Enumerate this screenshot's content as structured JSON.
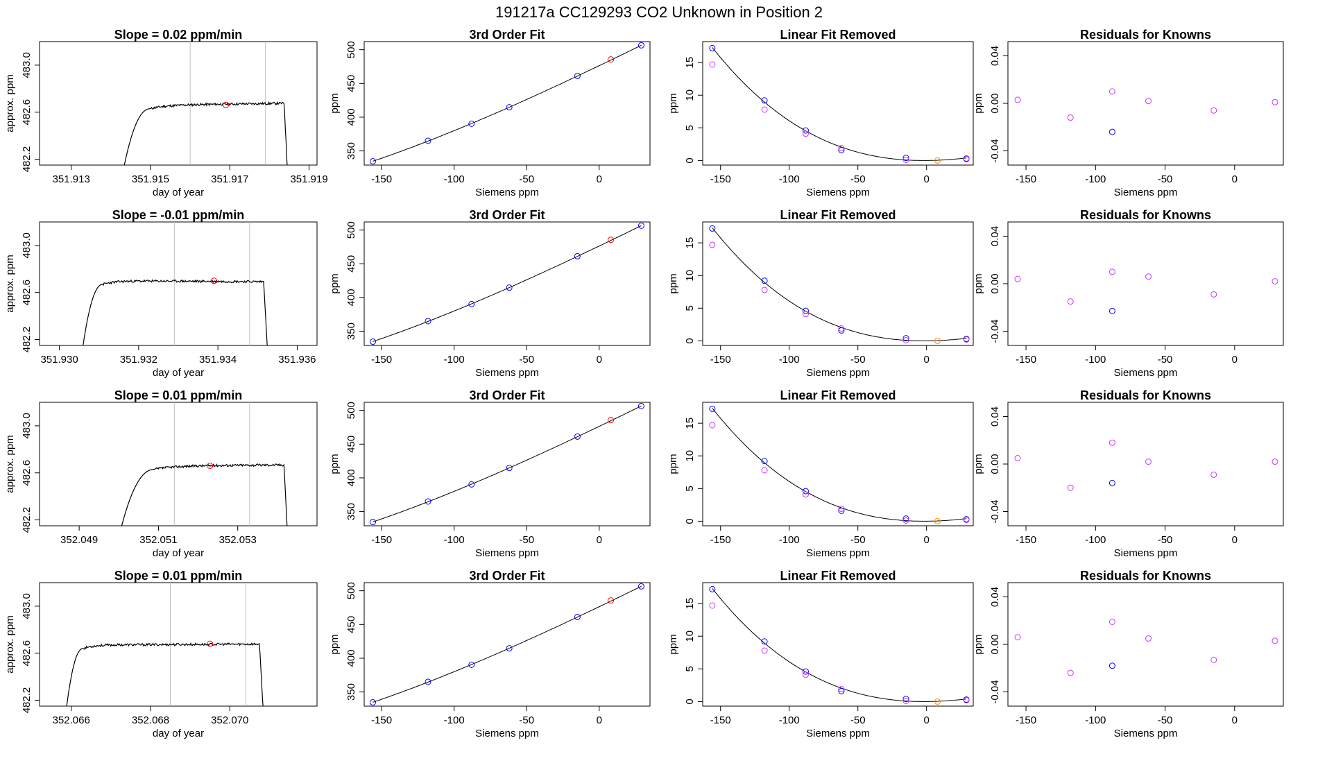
{
  "figure": {
    "title": "191217a      CC129293    CO2 Unknown in Position  2"
  },
  "colors": {
    "axis": "#000000",
    "line": "#000000",
    "vline": "#bebebe",
    "known_blue": "#0000ff",
    "unknown_red": "#ff0000",
    "unknown_orange": "#ff8c00",
    "magenta": "#cc33ff"
  },
  "chart_data": [
    {
      "type": "line",
      "panel": "row1-col1",
      "title": "Slope =  0.02  ppm/min",
      "xlabel": "day of year",
      "ylabel": "approx. ppm",
      "xlim": [
        351.9122,
        351.9192
      ],
      "ylim": [
        482.15,
        483.2
      ],
      "xticks": [
        "351.913",
        "351.915",
        "351.917",
        "351.919"
      ],
      "yticks": [
        "482.2",
        "482.6",
        "483.0"
      ],
      "vlines": [
        351.916,
        351.9179
      ],
      "marker": {
        "x": 351.9169,
        "y": 482.66,
        "color": "red"
      },
      "trace": {
        "start": 351.9142,
        "end": 351.9185,
        "plateau": 482.66,
        "rise_end": 351.915,
        "slope": 0.02,
        "noise": 0.02,
        "seed": 11
      }
    },
    {
      "type": "line",
      "panel": "row2-col1",
      "title": "Slope =  -0.01  ppm/min",
      "xlabel": "day of year",
      "ylabel": "approx. ppm",
      "xlim": [
        351.9295,
        351.9365
      ],
      "ylim": [
        482.15,
        483.2
      ],
      "xticks": [
        "351.930",
        "351.932",
        "351.934",
        "351.936"
      ],
      "yticks": [
        "482.2",
        "482.6",
        "483.0"
      ],
      "vlines": [
        351.9329,
        351.9348
      ],
      "marker": {
        "x": 351.9339,
        "y": 482.7,
        "color": "red"
      },
      "trace": {
        "start": 351.9305,
        "end": 351.9353,
        "plateau": 482.7,
        "rise_end": 351.9311,
        "slope": -0.01,
        "noise": 0.02,
        "seed": 23
      }
    },
    {
      "type": "line",
      "panel": "row3-col1",
      "title": "Slope =  0.01  ppm/min",
      "xlabel": "day of year",
      "ylabel": "approx. ppm",
      "xlim": [
        352.048,
        352.055
      ],
      "ylim": [
        482.15,
        483.2
      ],
      "xticks": [
        "352.049",
        "352.051",
        "352.053"
      ],
      "yticks": [
        "482.2",
        "482.6",
        "483.0"
      ],
      "vlines": [
        352.0514,
        352.0533
      ],
      "marker": {
        "x": 352.0523,
        "y": 482.66,
        "color": "red"
      },
      "trace": {
        "start": 352.0499,
        "end": 352.0543,
        "plateau": 482.66,
        "rise_end": 352.0509,
        "slope": 0.01,
        "noise": 0.02,
        "seed": 37
      }
    },
    {
      "type": "line",
      "panel": "row4-col1",
      "title": "Slope =  0.01  ppm/min",
      "xlabel": "day of year",
      "ylabel": "approx. ppm",
      "xlim": [
        352.0652,
        352.0722
      ],
      "ylim": [
        482.15,
        483.2
      ],
      "xticks": [
        "352.066",
        "352.068",
        "352.070"
      ],
      "yticks": [
        "482.2",
        "482.6",
        "483.0"
      ],
      "vlines": [
        352.0685,
        352.0704
      ],
      "marker": {
        "x": 352.0695,
        "y": 482.68,
        "color": "red"
      },
      "trace": {
        "start": 352.0658,
        "end": 352.0709,
        "plateau": 482.67,
        "rise_end": 352.0663,
        "slope": 0.01,
        "noise": 0.02,
        "seed": 53
      }
    },
    {
      "type": "scatter",
      "panel": "row1-col2",
      "title": "3rd Order Fit",
      "xlabel": "Siemens ppm",
      "ylabel": "ppm",
      "xlim": [
        -162,
        35
      ],
      "ylim": [
        329,
        512
      ],
      "xticks": [
        -150,
        -100,
        -50,
        0
      ],
      "yticks": [
        350,
        400,
        450,
        500
      ],
      "fit": {
        "from": -156,
        "to": 29
      },
      "points": [
        {
          "x": -156,
          "y": 334.6,
          "color": "blue"
        },
        {
          "x": -118,
          "y": 365.0,
          "color": "blue"
        },
        {
          "x": -88,
          "y": 390.3,
          "color": "blue"
        },
        {
          "x": -62,
          "y": 414.7,
          "color": "blue"
        },
        {
          "x": -15,
          "y": 461.2,
          "color": "blue"
        },
        {
          "x": 29,
          "y": 506.5,
          "color": "blue"
        },
        {
          "x": 8,
          "y": 485.6,
          "color": "red"
        }
      ]
    },
    {
      "type": "scatter",
      "panel": "row2-col2",
      "title": "3rd Order Fit",
      "xlabel": "Siemens ppm",
      "ylabel": "ppm",
      "xlim": [
        -162,
        35
      ],
      "ylim": [
        329,
        512
      ],
      "xticks": [
        -150,
        -100,
        -50,
        0
      ],
      "yticks": [
        350,
        400,
        450,
        500
      ],
      "fit": {
        "from": -156,
        "to": 29
      },
      "points": [
        {
          "x": -156,
          "y": 334.6,
          "color": "blue"
        },
        {
          "x": -118,
          "y": 365.0,
          "color": "blue"
        },
        {
          "x": -88,
          "y": 390.3,
          "color": "blue"
        },
        {
          "x": -62,
          "y": 414.7,
          "color": "blue"
        },
        {
          "x": -15,
          "y": 461.2,
          "color": "blue"
        },
        {
          "x": 29,
          "y": 506.5,
          "color": "blue"
        },
        {
          "x": 8,
          "y": 485.6,
          "color": "red"
        }
      ]
    },
    {
      "type": "scatter",
      "panel": "row3-col2",
      "title": "3rd Order Fit",
      "xlabel": "Siemens ppm",
      "ylabel": "ppm",
      "xlim": [
        -162,
        35
      ],
      "ylim": [
        329,
        512
      ],
      "xticks": [
        -150,
        -100,
        -50,
        0
      ],
      "yticks": [
        350,
        400,
        450,
        500
      ],
      "fit": {
        "from": -156,
        "to": 29
      },
      "points": [
        {
          "x": -156,
          "y": 334.6,
          "color": "blue"
        },
        {
          "x": -118,
          "y": 365.0,
          "color": "blue"
        },
        {
          "x": -88,
          "y": 390.3,
          "color": "blue"
        },
        {
          "x": -62,
          "y": 414.7,
          "color": "blue"
        },
        {
          "x": -15,
          "y": 461.2,
          "color": "blue"
        },
        {
          "x": 29,
          "y": 506.5,
          "color": "blue"
        },
        {
          "x": 8,
          "y": 485.6,
          "color": "red"
        }
      ]
    },
    {
      "type": "scatter",
      "panel": "row4-col2",
      "title": "3rd Order Fit",
      "xlabel": "Siemens ppm",
      "ylabel": "ppm",
      "xlim": [
        -162,
        35
      ],
      "ylim": [
        329,
        512
      ],
      "xticks": [
        -150,
        -100,
        -50,
        0
      ],
      "yticks": [
        350,
        400,
        450,
        500
      ],
      "fit": {
        "from": -156,
        "to": 29
      },
      "points": [
        {
          "x": -156,
          "y": 334.6,
          "color": "blue"
        },
        {
          "x": -118,
          "y": 365.0,
          "color": "blue"
        },
        {
          "x": -88,
          "y": 390.3,
          "color": "blue"
        },
        {
          "x": -62,
          "y": 414.7,
          "color": "blue"
        },
        {
          "x": -15,
          "y": 461.2,
          "color": "blue"
        },
        {
          "x": 29,
          "y": 506.5,
          "color": "blue"
        },
        {
          "x": 8,
          "y": 485.6,
          "color": "red"
        }
      ]
    },
    {
      "type": "scatter",
      "panel": "row1-col3",
      "title": "Linear Fit Removed",
      "xlabel": "Siemens ppm",
      "ylabel": "ppm",
      "xlim": [
        -163,
        34
      ],
      "ylim": [
        -0.7,
        18.2
      ],
      "xticks": [
        -150,
        -100,
        -50,
        0
      ],
      "yticks": [
        0,
        5,
        10,
        15
      ],
      "fit": {
        "from": -156,
        "to": 29
      },
      "points": [
        {
          "x": -156,
          "y": 17.2,
          "color": "blue"
        },
        {
          "x": -118,
          "y": 9.2,
          "color": "blue"
        },
        {
          "x": -88,
          "y": 4.6,
          "color": "blue"
        },
        {
          "x": -62,
          "y": 1.6,
          "color": "blue"
        },
        {
          "x": -15,
          "y": 0.4,
          "color": "blue"
        },
        {
          "x": 29,
          "y": 0.3,
          "color": "blue"
        },
        {
          "x": -156,
          "y": 14.7,
          "color": "magenta"
        },
        {
          "x": -118,
          "y": 7.8,
          "color": "magenta"
        },
        {
          "x": -88,
          "y": 4.1,
          "color": "magenta"
        },
        {
          "x": -62,
          "y": 1.9,
          "color": "magenta"
        },
        {
          "x": -15,
          "y": 0.1,
          "color": "magenta"
        },
        {
          "x": 29,
          "y": 0.2,
          "color": "magenta"
        },
        {
          "x": 8,
          "y": 0.0,
          "color": "orange"
        }
      ]
    },
    {
      "type": "scatter",
      "panel": "row2-col3",
      "title": "Linear Fit Removed",
      "xlabel": "Siemens ppm",
      "ylabel": "ppm",
      "xlim": [
        -163,
        34
      ],
      "ylim": [
        -0.7,
        18.2
      ],
      "xticks": [
        -150,
        -100,
        -50,
        0
      ],
      "yticks": [
        0,
        5,
        10,
        15
      ],
      "fit": {
        "from": -156,
        "to": 29
      },
      "points": [
        {
          "x": -156,
          "y": 17.2,
          "color": "blue"
        },
        {
          "x": -118,
          "y": 9.2,
          "color": "blue"
        },
        {
          "x": -88,
          "y": 4.6,
          "color": "blue"
        },
        {
          "x": -62,
          "y": 1.6,
          "color": "blue"
        },
        {
          "x": -15,
          "y": 0.4,
          "color": "blue"
        },
        {
          "x": 29,
          "y": 0.3,
          "color": "blue"
        },
        {
          "x": -156,
          "y": 14.7,
          "color": "magenta"
        },
        {
          "x": -118,
          "y": 7.8,
          "color": "magenta"
        },
        {
          "x": -88,
          "y": 4.1,
          "color": "magenta"
        },
        {
          "x": -62,
          "y": 1.9,
          "color": "magenta"
        },
        {
          "x": -15,
          "y": 0.1,
          "color": "magenta"
        },
        {
          "x": 29,
          "y": 0.2,
          "color": "magenta"
        },
        {
          "x": 8,
          "y": 0.0,
          "color": "orange"
        }
      ]
    },
    {
      "type": "scatter",
      "panel": "row3-col3",
      "title": "Linear Fit Removed",
      "xlabel": "Siemens ppm",
      "ylabel": "ppm",
      "xlim": [
        -163,
        34
      ],
      "ylim": [
        -0.7,
        18.2
      ],
      "xticks": [
        -150,
        -100,
        -50,
        0
      ],
      "yticks": [
        0,
        5,
        10,
        15
      ],
      "fit": {
        "from": -156,
        "to": 29
      },
      "points": [
        {
          "x": -156,
          "y": 17.2,
          "color": "blue"
        },
        {
          "x": -118,
          "y": 9.2,
          "color": "blue"
        },
        {
          "x": -88,
          "y": 4.6,
          "color": "blue"
        },
        {
          "x": -62,
          "y": 1.6,
          "color": "blue"
        },
        {
          "x": -15,
          "y": 0.4,
          "color": "blue"
        },
        {
          "x": 29,
          "y": 0.3,
          "color": "blue"
        },
        {
          "x": -156,
          "y": 14.7,
          "color": "magenta"
        },
        {
          "x": -118,
          "y": 7.8,
          "color": "magenta"
        },
        {
          "x": -88,
          "y": 4.1,
          "color": "magenta"
        },
        {
          "x": -62,
          "y": 1.9,
          "color": "magenta"
        },
        {
          "x": -15,
          "y": 0.1,
          "color": "magenta"
        },
        {
          "x": 29,
          "y": 0.2,
          "color": "magenta"
        },
        {
          "x": 8,
          "y": 0.0,
          "color": "orange"
        }
      ]
    },
    {
      "type": "scatter",
      "panel": "row4-col3",
      "title": "Linear Fit Removed",
      "xlabel": "Siemens ppm",
      "ylabel": "ppm",
      "xlim": [
        -163,
        34
      ],
      "ylim": [
        -0.7,
        18.2
      ],
      "xticks": [
        -150,
        -100,
        -50,
        0
      ],
      "yticks": [
        0,
        5,
        10,
        15
      ],
      "fit": {
        "from": -156,
        "to": 29
      },
      "points": [
        {
          "x": -156,
          "y": 17.2,
          "color": "blue"
        },
        {
          "x": -118,
          "y": 9.2,
          "color": "blue"
        },
        {
          "x": -88,
          "y": 4.6,
          "color": "blue"
        },
        {
          "x": -62,
          "y": 1.6,
          "color": "blue"
        },
        {
          "x": -15,
          "y": 0.4,
          "color": "blue"
        },
        {
          "x": 29,
          "y": 0.3,
          "color": "blue"
        },
        {
          "x": -156,
          "y": 14.7,
          "color": "magenta"
        },
        {
          "x": -118,
          "y": 7.8,
          "color": "magenta"
        },
        {
          "x": -88,
          "y": 4.1,
          "color": "magenta"
        },
        {
          "x": -62,
          "y": 1.9,
          "color": "magenta"
        },
        {
          "x": -15,
          "y": 0.1,
          "color": "magenta"
        },
        {
          "x": 29,
          "y": 0.2,
          "color": "magenta"
        },
        {
          "x": 8,
          "y": 0.0,
          "color": "orange"
        }
      ]
    },
    {
      "type": "scatter",
      "panel": "row1-col4",
      "title": "Residuals for Knowns",
      "xlabel": "Siemens ppm",
      "ylabel": "ppm",
      "xlim": [
        -163,
        35
      ],
      "ylim": [
        -0.052,
        0.052
      ],
      "xticks": [
        -150,
        -100,
        -50,
        0
      ],
      "yticks": [
        "-0.04",
        "0.00",
        "0.04"
      ],
      "points": [
        {
          "x": -156,
          "y": 0.003,
          "color": "magenta"
        },
        {
          "x": -118,
          "y": -0.012,
          "color": "magenta"
        },
        {
          "x": -88,
          "y": 0.01,
          "color": "magenta"
        },
        {
          "x": -88,
          "y": -0.024,
          "color": "blue"
        },
        {
          "x": -62,
          "y": 0.002,
          "color": "magenta"
        },
        {
          "x": -15,
          "y": -0.006,
          "color": "magenta"
        },
        {
          "x": 29,
          "y": 0.001,
          "color": "magenta"
        }
      ]
    },
    {
      "type": "scatter",
      "panel": "row2-col4",
      "title": "Residuals for Knowns",
      "xlabel": "Siemens ppm",
      "ylabel": "ppm",
      "xlim": [
        -163,
        35
      ],
      "ylim": [
        -0.052,
        0.052
      ],
      "xticks": [
        -150,
        -100,
        -50,
        0
      ],
      "yticks": [
        "-0.04",
        "0.00",
        "0.04"
      ],
      "points": [
        {
          "x": -156,
          "y": 0.004,
          "color": "magenta"
        },
        {
          "x": -118,
          "y": -0.015,
          "color": "magenta"
        },
        {
          "x": -88,
          "y": 0.01,
          "color": "magenta"
        },
        {
          "x": -88,
          "y": -0.023,
          "color": "blue"
        },
        {
          "x": -62,
          "y": 0.006,
          "color": "magenta"
        },
        {
          "x": -15,
          "y": -0.009,
          "color": "magenta"
        },
        {
          "x": 29,
          "y": 0.002,
          "color": "magenta"
        }
      ]
    },
    {
      "type": "scatter",
      "panel": "row3-col4",
      "title": "Residuals for Knowns",
      "xlabel": "Siemens ppm",
      "ylabel": "ppm",
      "xlim": [
        -163,
        35
      ],
      "ylim": [
        -0.052,
        0.052
      ],
      "xticks": [
        -150,
        -100,
        -50,
        0
      ],
      "yticks": [
        "-0.04",
        "0.00",
        "0.04"
      ],
      "points": [
        {
          "x": -156,
          "y": 0.005,
          "color": "magenta"
        },
        {
          "x": -118,
          "y": -0.02,
          "color": "magenta"
        },
        {
          "x": -88,
          "y": 0.018,
          "color": "magenta"
        },
        {
          "x": -88,
          "y": -0.016,
          "color": "blue"
        },
        {
          "x": -62,
          "y": 0.002,
          "color": "magenta"
        },
        {
          "x": -15,
          "y": -0.009,
          "color": "magenta"
        },
        {
          "x": 29,
          "y": 0.002,
          "color": "magenta"
        }
      ]
    },
    {
      "type": "scatter",
      "panel": "row4-col4",
      "title": "Residuals for Knowns",
      "xlabel": "Siemens ppm",
      "ylabel": "ppm",
      "xlim": [
        -163,
        35
      ],
      "ylim": [
        -0.052,
        0.052
      ],
      "xticks": [
        -150,
        -100,
        -50,
        0
      ],
      "yticks": [
        "-0.04",
        "0.00",
        "0.04"
      ],
      "points": [
        {
          "x": -156,
          "y": 0.006,
          "color": "magenta"
        },
        {
          "x": -118,
          "y": -0.024,
          "color": "magenta"
        },
        {
          "x": -88,
          "y": 0.019,
          "color": "magenta"
        },
        {
          "x": -88,
          "y": -0.018,
          "color": "blue"
        },
        {
          "x": -62,
          "y": 0.005,
          "color": "magenta"
        },
        {
          "x": -15,
          "y": -0.013,
          "color": "magenta"
        },
        {
          "x": 29,
          "y": 0.003,
          "color": "magenta"
        }
      ]
    }
  ]
}
